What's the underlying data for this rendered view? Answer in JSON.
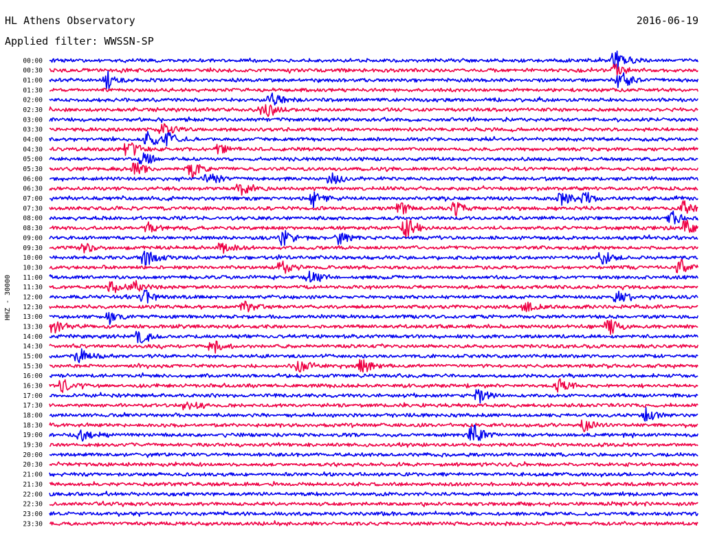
{
  "header": {
    "station": "HL Athens Observatory",
    "date": "2016-06-19",
    "filter": "Applied filter: WWSSN-SP"
  },
  "chart_data": {
    "type": "line",
    "title": "HL Athens Observatory",
    "date": "2016-06-19",
    "filter": "WWSSN-SP",
    "channel_label": "HHZ - 30000",
    "row_times": [
      "00:00",
      "00:30",
      "01:00",
      "01:30",
      "02:00",
      "02:30",
      "03:00",
      "03:30",
      "04:00",
      "04:30",
      "05:00",
      "05:30",
      "06:00",
      "06:30",
      "07:00",
      "07:30",
      "08:00",
      "08:30",
      "09:00",
      "09:30",
      "10:00",
      "10:30",
      "11:00",
      "11:30",
      "12:00",
      "12:30",
      "13:00",
      "13:30",
      "14:00",
      "14:30",
      "15:00",
      "15:30",
      "16:00",
      "16:30",
      "17:00",
      "17:30",
      "18:00",
      "18:30",
      "19:00",
      "19:30",
      "20:00",
      "20:30",
      "21:00",
      "21:30",
      "22:00",
      "22:30",
      "23:00",
      "23:30"
    ],
    "series_colors": [
      "#0000ee",
      "#ee0044"
    ],
    "color_pattern": "alternating by row, starting with blue at 00:00",
    "row_duration_minutes": 30,
    "events": [
      {
        "row": 0,
        "minute": 26.2,
        "amplitude": 1.8
      },
      {
        "row": 1,
        "minute": 26.2,
        "amplitude": 1.2
      },
      {
        "row": 2,
        "minute": 2.7,
        "amplitude": 1.3
      },
      {
        "row": 2,
        "minute": 26.4,
        "amplitude": 1.7
      },
      {
        "row": 4,
        "minute": 10.3,
        "amplitude": 1.0
      },
      {
        "row": 5,
        "minute": 10.0,
        "amplitude": 1.5
      },
      {
        "row": 7,
        "minute": 5.3,
        "amplitude": 1.2
      },
      {
        "row": 8,
        "minute": 4.6,
        "amplitude": 1.4
      },
      {
        "row": 8,
        "minute": 5.5,
        "amplitude": 1.0
      },
      {
        "row": 9,
        "minute": 3.7,
        "amplitude": 1.4
      },
      {
        "row": 9,
        "minute": 7.9,
        "amplitude": 1.0
      },
      {
        "row": 10,
        "minute": 4.4,
        "amplitude": 1.1
      },
      {
        "row": 11,
        "minute": 4.0,
        "amplitude": 1.3
      },
      {
        "row": 11,
        "minute": 6.6,
        "amplitude": 1.2
      },
      {
        "row": 12,
        "minute": 7.4,
        "amplitude": 1.0
      },
      {
        "row": 12,
        "minute": 13.1,
        "amplitude": 0.9
      },
      {
        "row": 13,
        "minute": 8.9,
        "amplitude": 1.1
      },
      {
        "row": 14,
        "minute": 12.2,
        "amplitude": 1.3
      },
      {
        "row": 14,
        "minute": 23.7,
        "amplitude": 1.1
      },
      {
        "row": 14,
        "minute": 24.8,
        "amplitude": 1.0
      },
      {
        "row": 15,
        "minute": 16.3,
        "amplitude": 1.0
      },
      {
        "row": 15,
        "minute": 18.8,
        "amplitude": 1.1
      },
      {
        "row": 15,
        "minute": 29.3,
        "amplitude": 1.3
      },
      {
        "row": 16,
        "minute": 28.8,
        "amplitude": 1.1
      },
      {
        "row": 17,
        "minute": 4.6,
        "amplitude": 1.0
      },
      {
        "row": 17,
        "minute": 16.5,
        "amplitude": 1.9
      },
      {
        "row": 17,
        "minute": 29.4,
        "amplitude": 1.3
      },
      {
        "row": 18,
        "minute": 10.8,
        "amplitude": 1.4
      },
      {
        "row": 18,
        "minute": 13.4,
        "amplitude": 1.0
      },
      {
        "row": 19,
        "minute": 1.6,
        "amplitude": 1.0
      },
      {
        "row": 19,
        "minute": 8.0,
        "amplitude": 0.9
      },
      {
        "row": 20,
        "minute": 4.5,
        "amplitude": 1.3
      },
      {
        "row": 20,
        "minute": 25.6,
        "amplitude": 1.2
      },
      {
        "row": 21,
        "minute": 10.8,
        "amplitude": 1.2
      },
      {
        "row": 21,
        "minute": 29.2,
        "amplitude": 1.1
      },
      {
        "row": 22,
        "minute": 12.1,
        "amplitude": 1.0
      },
      {
        "row": 23,
        "minute": 2.9,
        "amplitude": 1.0
      },
      {
        "row": 23,
        "minute": 4.0,
        "amplitude": 0.9
      },
      {
        "row": 24,
        "minute": 4.4,
        "amplitude": 1.3
      },
      {
        "row": 24,
        "minute": 26.3,
        "amplitude": 1.0
      },
      {
        "row": 25,
        "minute": 9.0,
        "amplitude": 0.9
      },
      {
        "row": 25,
        "minute": 22.0,
        "amplitude": 1.0
      },
      {
        "row": 26,
        "minute": 2.8,
        "amplitude": 1.0
      },
      {
        "row": 27,
        "minute": 0.2,
        "amplitude": 1.2
      },
      {
        "row": 27,
        "minute": 25.9,
        "amplitude": 1.3
      },
      {
        "row": 28,
        "minute": 4.2,
        "amplitude": 1.1
      },
      {
        "row": 29,
        "minute": 7.6,
        "amplitude": 1.0
      },
      {
        "row": 30,
        "minute": 1.4,
        "amplitude": 1.3
      },
      {
        "row": 31,
        "minute": 11.6,
        "amplitude": 1.0
      },
      {
        "row": 31,
        "minute": 14.5,
        "amplitude": 1.2
      },
      {
        "row": 33,
        "minute": 0.7,
        "amplitude": 1.1
      },
      {
        "row": 33,
        "minute": 23.6,
        "amplitude": 1.2
      },
      {
        "row": 34,
        "minute": 19.9,
        "amplitude": 1.2
      },
      {
        "row": 35,
        "minute": 6.4,
        "amplitude": 1.1
      },
      {
        "row": 36,
        "minute": 27.6,
        "amplitude": 1.1
      },
      {
        "row": 37,
        "minute": 24.8,
        "amplitude": 1.0
      },
      {
        "row": 38,
        "minute": 1.4,
        "amplitude": 1.0
      },
      {
        "row": 38,
        "minute": 19.6,
        "amplitude": 1.6
      }
    ]
  }
}
